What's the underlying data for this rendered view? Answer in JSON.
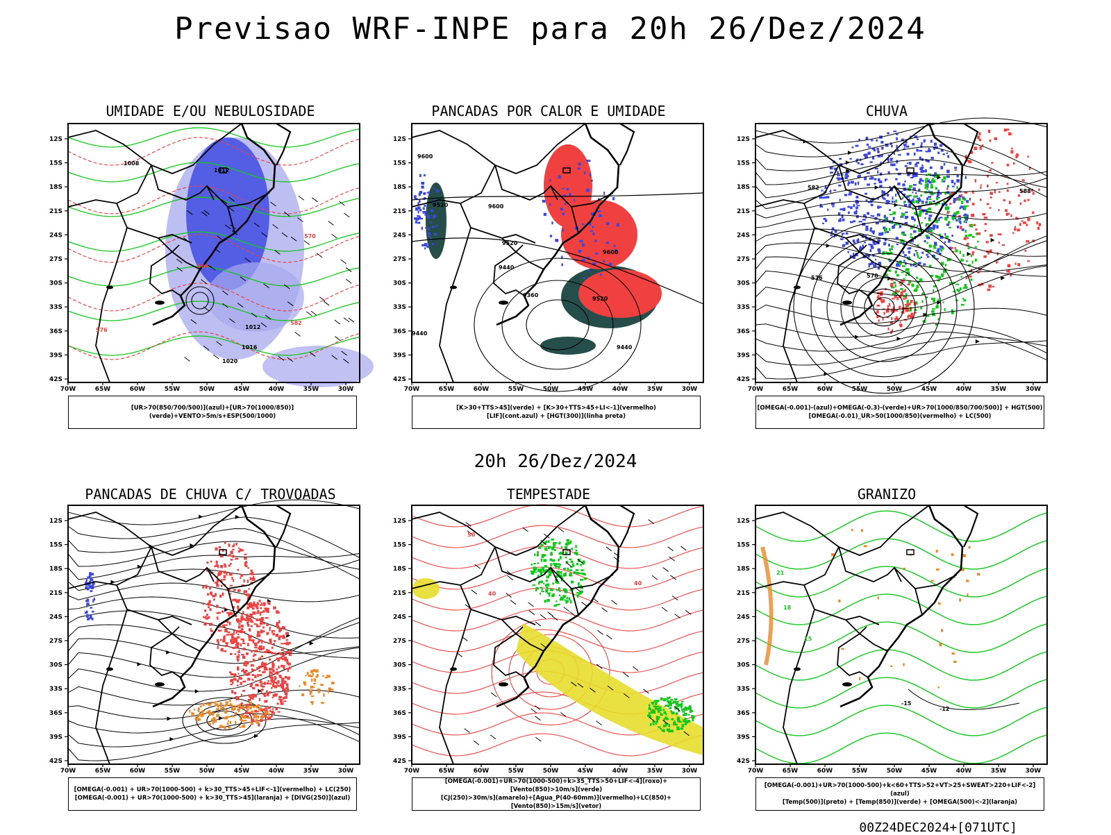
{
  "title": "Previsao WRF-INPE  para 20h 26/Dez/2024",
  "subtitle": "20h 26/Dez/2024",
  "footer": "00Z24DEC2024+[071UTC]",
  "axes": {
    "lat_labels": [
      "12S",
      "15S",
      "18S",
      "21S",
      "24S",
      "27S",
      "30S",
      "33S",
      "36S",
      "39S",
      "42S"
    ],
    "lon_labels": [
      "70W",
      "65W",
      "60W",
      "55W",
      "50W",
      "45W",
      "40W",
      "35W",
      "30W"
    ]
  },
  "colors": {
    "blue": "#3a46e0",
    "lightblue": "#a7a8ee",
    "green": "#10c81a",
    "red": "#f04040",
    "orange": "#e98a2c",
    "yellow": "#e6de2c",
    "darkteal": "#254e4a",
    "black": "#000000"
  },
  "panels": [
    {
      "title": "UMIDADE E/OU NEBULOSIDADE",
      "legend": [
        "[UR>70(850/700/500)](azul)+[UR>70(1000/850)](verde)+VENTO>5m/s+ESP(500/1000)"
      ],
      "contour_labels": [
        "1008",
        "1012",
        "1016",
        "1020",
        "570",
        "576",
        "582",
        "564"
      ]
    },
    {
      "title": "PANCADAS POR CALOR E UMIDADE",
      "legend": [
        "[K>30+TTS>45](verde) + [K>30+TTS>45+LI<-1](vermelho)",
        "[LIF](cont.azul) + [HGT(300)](linha preta)"
      ],
      "contour_labels": [
        "9600",
        "9520",
        "9440",
        "9360"
      ]
    },
    {
      "title": "CHUVA",
      "legend": [
        "[OMEGA(-0.001)-(azul)+OMEGA(-0.3)-(verde)+UR>70(1000/850/700/500)] + HGT(500)",
        "[OMEGA(-0.01)_UR>50(1000/850)(vermelho) + LC(500)"
      ],
      "contour_labels": [
        "582",
        "588",
        "576",
        "570"
      ]
    },
    {
      "title": "PANCADAS DE CHUVA C/ TROVOADAS",
      "legend": [
        "[OMEGA(-0.001) + UR>70(1000-500) + k>30_TTS>45+LIF<-1](vermelho) + LC(250)",
        "[OMEGA(-0.001) + UR>70(1000-500) + k>30_TTS>45](laranja) + [DIVG(250)](azul)"
      ],
      "contour_labels": []
    },
    {
      "title": "TEMPESTADE",
      "legend": [
        "[OMEGA(-0.001)+UR>70(1000-500)+k>35_TTS>50+LIF<-4](roxo)+[Vento(850)>10m/s](verde)",
        "[CJ(250)>30m/s](amarelo)+[Agua_P(40-60mm)](vermelho)+LC(850)+[Vento(850)>15m/s](vetor)"
      ],
      "contour_labels": [
        "40",
        "50"
      ]
    },
    {
      "title": "GRANIZO",
      "legend": [
        "[OMEGA(-0.001)+UR>70(1000-500)+k<60+TTS>52+VT>25+SWEAT>220+LIF<-2](azul)",
        "[Temp(500)](preto) + [Temp(850)](verde) + [OMEGA(500)<-2](laranja)"
      ],
      "contour_labels": [
        "-15",
        "-12",
        "15",
        "18",
        "21"
      ]
    }
  ]
}
